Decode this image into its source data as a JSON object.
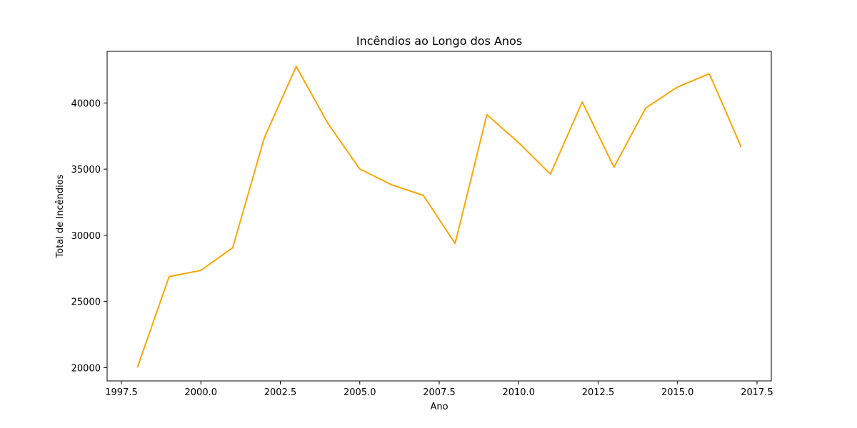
{
  "chart_data": {
    "type": "line",
    "title": "Incêndios ao Longo dos Anos",
    "xlabel": "Ano",
    "ylabel": "Total de Incêndios",
    "xlim": [
      1997.05,
      2017.95
    ],
    "ylim": [
      19000,
      43900
    ],
    "x_ticks": [
      1997.5,
      2000.0,
      2002.5,
      2005.0,
      2007.5,
      2010.0,
      2012.5,
      2015.0,
      2017.5
    ],
    "x_tick_labels": [
      "1997.5",
      "2000.0",
      "2002.5",
      "2005.0",
      "2007.5",
      "2010.0",
      "2012.5",
      "2015.0",
      "2017.5"
    ],
    "y_ticks": [
      20000,
      25000,
      30000,
      35000,
      40000
    ],
    "y_tick_labels": [
      "20000",
      "25000",
      "30000",
      "35000",
      "40000"
    ],
    "grid": false,
    "legend": "none",
    "series": [
      {
        "color": "#ffa500",
        "x": [
          1998,
          1999,
          2000,
          2001,
          2002,
          2003,
          2004,
          2005,
          2006,
          2007,
          2008,
          2009,
          2010,
          2011,
          2012,
          2013,
          2014,
          2015,
          2016,
          2017
        ],
        "y": [
          20000,
          26880,
          27350,
          29060,
          37390,
          42760,
          38440,
          35010,
          33820,
          33020,
          29380,
          39120,
          37000,
          34630,
          40080,
          35150,
          39620,
          41210,
          42210,
          36680
        ]
      }
    ]
  }
}
